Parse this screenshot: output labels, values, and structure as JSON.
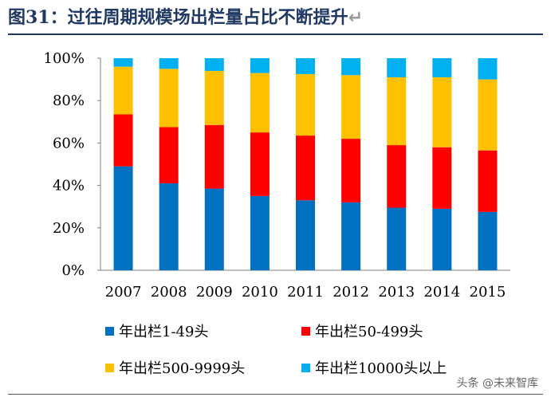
{
  "header": {
    "title_prefix": "图",
    "title_number": "31：",
    "title_text": "过往周期规模场出栏量占比不断提升"
  },
  "chart_data": {
    "type": "bar",
    "stacked": true,
    "percent": true,
    "categories": [
      "2007",
      "2008",
      "2009",
      "2010",
      "2011",
      "2012",
      "2013",
      "2014",
      "2015"
    ],
    "series": [
      {
        "name": "年出栏1-49头",
        "color": "#0070c0",
        "values": [
          49,
          41,
          38.5,
          35,
          33,
          32,
          29.5,
          29,
          27.5
        ]
      },
      {
        "name": "年出栏50-499头",
        "color": "#ff0000",
        "values": [
          24.5,
          26.5,
          30,
          30,
          30.5,
          30,
          29.5,
          29,
          29
        ]
      },
      {
        "name": "年出栏500-9999头",
        "color": "#ffc000",
        "values": [
          22.5,
          27.5,
          25.5,
          28,
          29,
          30,
          32,
          33,
          33.5
        ]
      },
      {
        "name": "年出栏10000头以上",
        "color": "#00b0f0",
        "values": [
          4,
          5,
          6,
          7,
          7.5,
          8,
          9,
          9,
          10
        ]
      }
    ],
    "ylim": [
      0,
      100
    ],
    "yticks": [
      "0%",
      "20%",
      "40%",
      "60%",
      "80%",
      "100%"
    ],
    "legend_position": "bottom"
  },
  "footer": {
    "watermark": "头条 @未来智库"
  }
}
